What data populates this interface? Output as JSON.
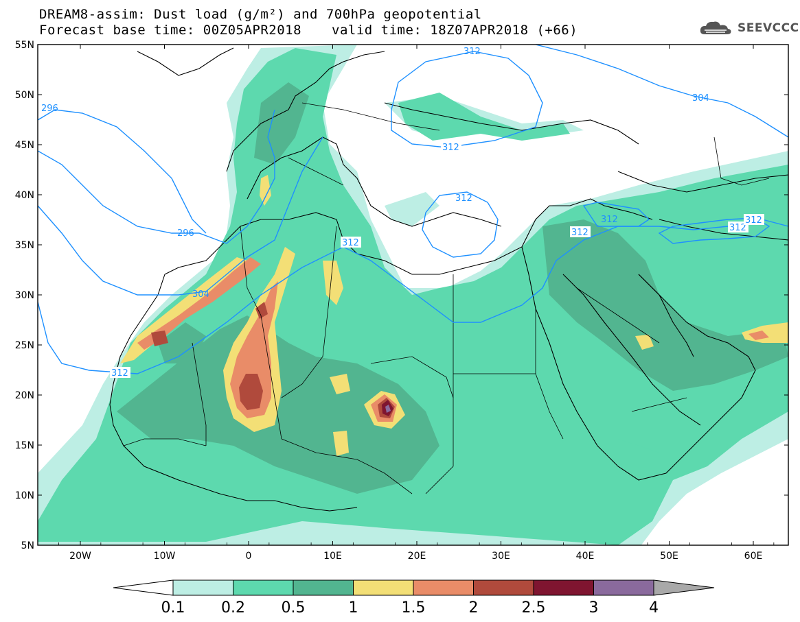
{
  "title": {
    "line1": "DREAM8-assim: Dust load (g/m²) and 700hPa geopotential",
    "line2": "Forecast base time: 00Z05APR2018",
    "valid": "valid time: 18Z07APR2018 (+66)"
  },
  "logo": {
    "text": "SEEVCCC",
    "icon": "cloud-icon"
  },
  "map": {
    "lat_ticks": [
      "55N",
      "50N",
      "45N",
      "40N",
      "35N",
      "30N",
      "25N",
      "20N",
      "15N",
      "10N",
      "5N"
    ],
    "lon_ticks": [
      "20W",
      "10W",
      "0",
      "10E",
      "20E",
      "30E",
      "40E",
      "50E",
      "60E"
    ],
    "contour_labels": {
      "c296a": "296",
      "c296b": "296",
      "c304a": "304",
      "c304b": "304",
      "c312a": "312",
      "c312b": "312",
      "c312c": "312",
      "c312d": "312",
      "c312e": "312",
      "c312f": "312",
      "c312g": "312",
      "c312h": "312",
      "c312i": "312"
    }
  },
  "colorbar": {
    "labels": [
      "0.1",
      "0.2",
      "0.5",
      "1",
      "1.5",
      "2",
      "2.5",
      "3",
      "4"
    ],
    "colors": [
      "#bdeee4",
      "#5dd9ae",
      "#52b590",
      "#f3df76",
      "#e98c68",
      "#b04a3c",
      "#7f1530",
      "#8a6a9d",
      "#a9a9a9"
    ],
    "under_color": "#ffffff"
  }
}
